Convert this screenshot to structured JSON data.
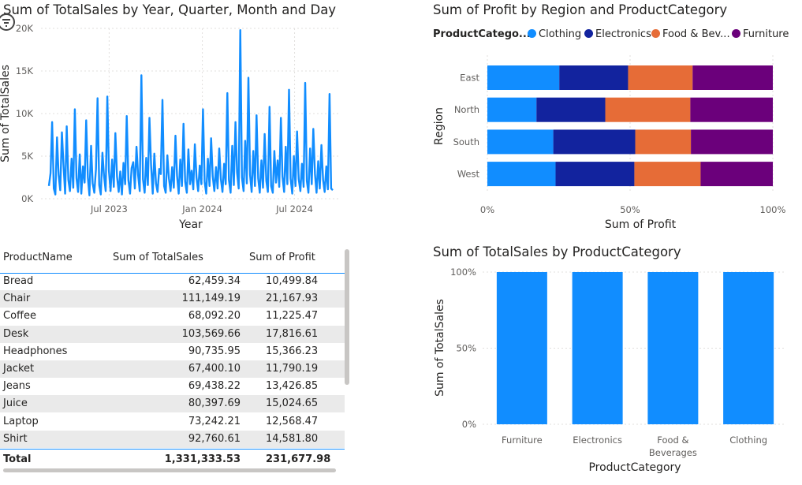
{
  "colors": {
    "clothing": "#118dff",
    "electronics": "#12239e",
    "food": "#e66c37",
    "furniture": "#6b007b",
    "line": "#118dff"
  },
  "line_chart": {
    "title": "Sum of TotalSales by Year, Quarter, Month and Day",
    "icon": "focus-mode-icon"
  },
  "stacked_chart": {
    "title": "Sum of Profit by Region and ProductCategory",
    "legend_title": "ProductCatego...",
    "legend_items": [
      "Clothing",
      "Electronics",
      "Food & Bev...",
      "Furniture"
    ]
  },
  "column_chart": {
    "title": "Sum of TotalSales by ProductCategory"
  },
  "table": {
    "headers": [
      "ProductName",
      "Sum of TotalSales",
      "Sum of Profit"
    ],
    "rows": [
      [
        "Bread",
        "62,459.34",
        "10,499.84"
      ],
      [
        "Chair",
        "111,149.19",
        "21,167.93"
      ],
      [
        "Coffee",
        "68,092.20",
        "11,225.47"
      ],
      [
        "Desk",
        "103,569.66",
        "17,816.61"
      ],
      [
        "Headphones",
        "90,735.95",
        "15,366.23"
      ],
      [
        "Jacket",
        "67,400.10",
        "11,790.19"
      ],
      [
        "Jeans",
        "69,438.22",
        "13,426.85"
      ],
      [
        "Juice",
        "80,397.69",
        "15,024.65"
      ],
      [
        "Laptop",
        "73,242.21",
        "12,568.47"
      ],
      [
        "Shirt",
        "92,760.61",
        "14,581.80"
      ]
    ],
    "total": [
      "Total",
      "1,331,333.53",
      "231,677.98"
    ]
  },
  "chart_data": [
    {
      "type": "line",
      "title": "Sum of TotalSales by Year, Quarter, Month and Day",
      "xlabel": "Year",
      "ylabel": "Sum of TotalSales",
      "x_ticks": [
        "Jul 2023",
        "Jan 2024",
        "Jul 2024"
      ],
      "y_ticks": [
        "0K",
        "5K",
        "10K",
        "15K",
        "20K"
      ],
      "ylim": [
        0,
        20000
      ],
      "x_range": [
        "2023-03-01",
        "2024-09-30"
      ],
      "grid": true,
      "series": [
        {
          "values": [
            1500,
            3000,
            9000,
            1200,
            500,
            7200,
            2800,
            1000,
            7800,
            4000,
            600,
            8500,
            2200,
            900,
            4700,
            1300,
            10500,
            2400,
            800,
            5200,
            600,
            3800,
            1900,
            9200,
            2500,
            400,
            6200,
            1800,
            700,
            3500,
            11800,
            1600,
            500,
            5400,
            2700,
            900,
            12000,
            3300,
            900,
            4600,
            1400,
            7700,
            2600,
            800,
            3200,
            500,
            4200,
            1700,
            9700,
            2200,
            600,
            3600,
            4300,
            1200,
            6100,
            2800,
            900,
            14500,
            2300,
            700,
            4800,
            1600,
            9500,
            3900,
            600,
            5300,
            1800,
            800,
            3500,
            2900,
            11600,
            1500,
            700,
            5100,
            2400,
            900,
            3700,
            1300,
            7400,
            2700,
            600,
            4600,
            1500,
            8800,
            2000,
            700,
            5800,
            1700,
            3300,
            1100,
            6400,
            2500,
            900,
            3900,
            1700,
            10500,
            2000,
            600,
            4700,
            1500,
            7100,
            2600,
            900,
            3700,
            1200,
            5900,
            2300,
            800,
            4100,
            1700,
            12400,
            2200,
            700,
            6200,
            1600,
            9000,
            3100,
            1200,
            19800,
            2500,
            900,
            6800,
            1800,
            14200,
            2800,
            800,
            5600,
            1500,
            9800,
            2400,
            700,
            4500,
            1300,
            7600,
            2100,
            800,
            10800,
            1500,
            700,
            5600,
            1900,
            4500,
            1400,
            9500,
            2600,
            800,
            6100,
            1700,
            12800,
            2400,
            600,
            5000,
            1500,
            7900,
            2300,
            900,
            4100,
            1400,
            13600,
            2100,
            700,
            5900,
            1700,
            8200,
            2900,
            700,
            4400,
            1200,
            6300,
            2200,
            800,
            3800,
            1100,
            12300,
            1200,
            1000
          ]
        }
      ]
    },
    {
      "type": "bar",
      "orientation": "horizontal",
      "stacked": "100%",
      "title": "Sum of Profit by Region and ProductCategory",
      "xlabel": "Sum of Profit",
      "ylabel": "Region",
      "categories": [
        "East",
        "North",
        "South",
        "West"
      ],
      "x_ticks": [
        "0%",
        "50%",
        "100%"
      ],
      "legend_title": "ProductCatego...",
      "legend_position": "top",
      "series": [
        {
          "name": "Clothing",
          "values": [
            25.2,
            17.2,
            23.1,
            23.9
          ]
        },
        {
          "name": "Electronics",
          "values": [
            24.1,
            24.1,
            28.7,
            27.6
          ]
        },
        {
          "name": "Food & Bev...",
          "values": [
            22.6,
            29.8,
            19.5,
            23.2
          ]
        },
        {
          "name": "Furniture",
          "values": [
            28.1,
            28.9,
            28.7,
            25.3
          ]
        }
      ]
    },
    {
      "type": "bar",
      "stacked": "100%",
      "title": "Sum of TotalSales by ProductCategory",
      "xlabel": "ProductCategory",
      "ylabel": "Sum of TotalSales",
      "categories": [
        "Furniture",
        "Electronics",
        "Food & Beverages",
        "Clothing"
      ],
      "values": [
        100,
        100,
        100,
        100
      ],
      "y_ticks": [
        "0%",
        "50%",
        "100%"
      ],
      "ylim": [
        0,
        100
      ]
    },
    {
      "type": "table",
      "columns": [
        "ProductName",
        "Sum of TotalSales",
        "Sum of Profit"
      ],
      "rows": [
        [
          "Bread",
          62459.34,
          10499.84
        ],
        [
          "Chair",
          111149.19,
          21167.93
        ],
        [
          "Coffee",
          68092.2,
          11225.47
        ],
        [
          "Desk",
          103569.66,
          17816.61
        ],
        [
          "Headphones",
          90735.95,
          15366.23
        ],
        [
          "Jacket",
          67400.1,
          11790.19
        ],
        [
          "Jeans",
          69438.22,
          13426.85
        ],
        [
          "Juice",
          80397.69,
          15024.65
        ],
        [
          "Laptop",
          73242.21,
          12568.47
        ],
        [
          "Shirt",
          92760.61,
          14581.8
        ]
      ],
      "total": [
        "Total",
        1331333.53,
        231677.98
      ]
    }
  ]
}
